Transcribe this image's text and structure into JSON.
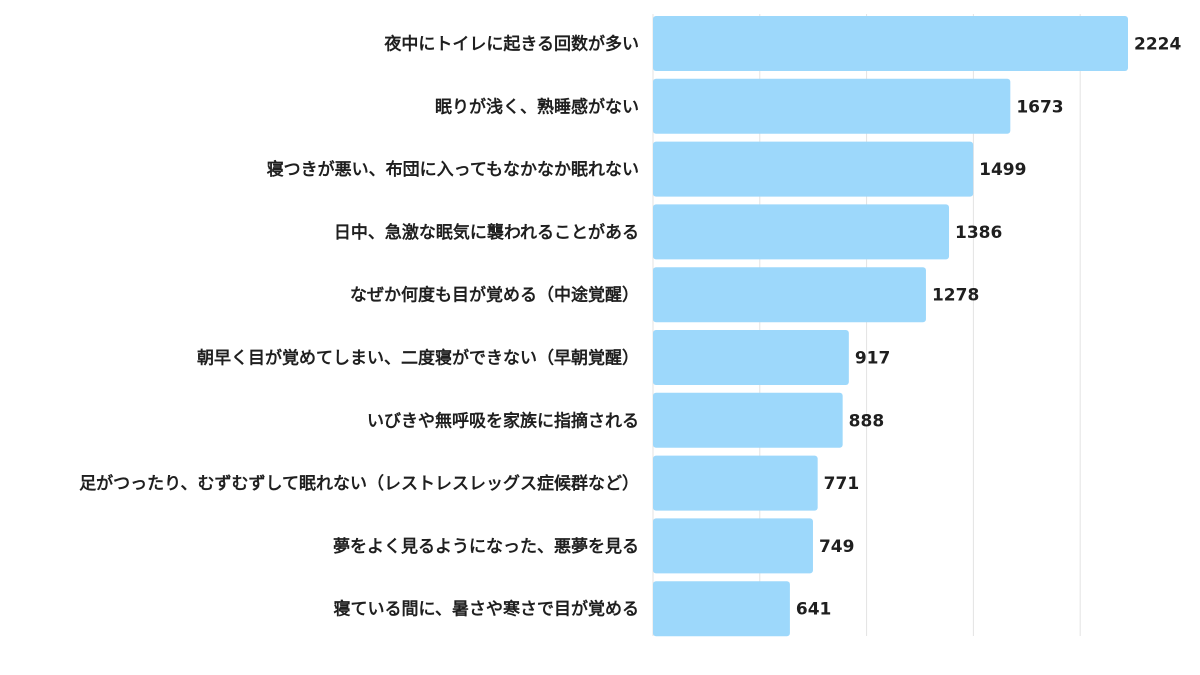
{
  "chart_data": {
    "type": "bar",
    "orientation": "horizontal",
    "categories": [
      "夜中にトイレに起きる回数が多い",
      "眠りが浅く、熟睡感がない",
      "寝つきが悪い、布団に入ってもなかなか眠れない",
      "日中、急激な眠気に襲われることがある",
      "なぜか何度も目が覚める（中途覚醒）",
      "朝早く目が覚めてしまい、二度寝ができない（早朝覚醒）",
      "いびきや無呼吸を家族に指摘される",
      "足がつったり、むずむずして眠れない（レストレスレッグス症候群など）",
      "夢をよく見るようになった、悪夢を見る",
      "寝ている間に、暑さや寒さで目が覚める"
    ],
    "values": [
      2224,
      1673,
      1499,
      1386,
      1278,
      917,
      888,
      771,
      749,
      641
    ],
    "value_labels": [
      "2224",
      "1673",
      "1499",
      "1386",
      "1278",
      "917",
      "888",
      "771",
      "749",
      "641"
    ],
    "xlim": [
      0,
      2250
    ],
    "gridlines": [
      500,
      1000,
      1500,
      2000
    ],
    "grid": true,
    "bar_color": "#9dd8fb",
    "grid_color": "#e3e3e3",
    "text_color": "#1f1f1f",
    "title": "",
    "xlabel": "",
    "ylabel": ""
  }
}
